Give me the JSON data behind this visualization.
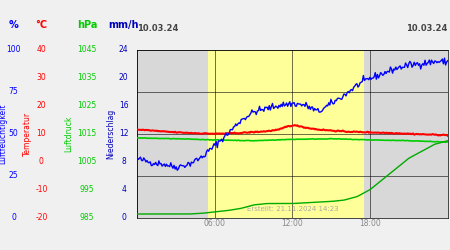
{
  "created_text": "Erstellt: 21.11.2024 14:23",
  "plot_bg_gray": "#d8d8d8",
  "plot_bg_yellow": "#ffff99",
  "humidity_color": "#0000ff",
  "temp_color": "#ff0000",
  "pressure_color": "#00cc00",
  "precip_color": "#00aa00",
  "fig_bg": "#f0f0f0",
  "grid_color": "#000000",
  "hum_ticks": [
    0,
    25,
    50,
    75,
    100
  ],
  "temp_ticks": [
    -20,
    -10,
    0,
    10,
    20,
    30,
    40
  ],
  "press_ticks": [
    985,
    995,
    1005,
    1015,
    1025,
    1035,
    1045
  ],
  "precip_ticks": [
    0,
    4,
    8,
    12,
    16,
    20,
    24
  ],
  "temp_min": -20,
  "temp_max": 40,
  "press_min": 985,
  "press_max": 1045,
  "precip_min": 0,
  "precip_max": 24
}
